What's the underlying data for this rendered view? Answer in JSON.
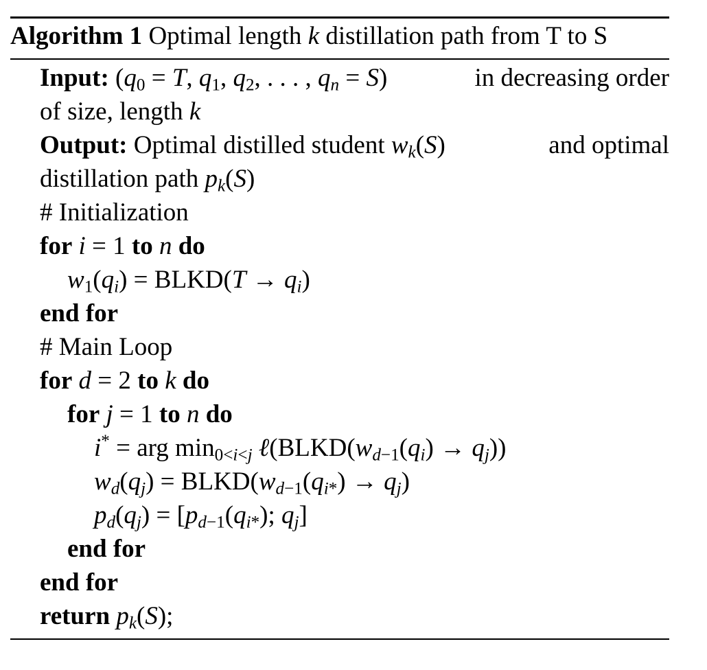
{
  "algorithm": {
    "label": "Algorithm 1",
    "title": "Optimal length k distillation path from T to S",
    "title_pre": "Optimal length",
    "title_var": "k",
    "title_post": "distillation path from T to S"
  },
  "io": {
    "input_label": "Input:",
    "input_tail": "in decreasing order",
    "input_line2_pre": "of size, length",
    "input_line2_var": "k",
    "output_label": "Output:",
    "output_pre": "Optimal distilled student",
    "output_mid": "and optimal",
    "output_line2_pre": "distillation path"
  },
  "comments": {
    "init": "# Initialization",
    "main": "# Main Loop"
  },
  "keywords": {
    "for": "for",
    "to": "to",
    "do": "do",
    "end_for": "end for",
    "return": "return"
  },
  "ops": {
    "blkd": "BLKD",
    "argmin": "arg min"
  }
}
